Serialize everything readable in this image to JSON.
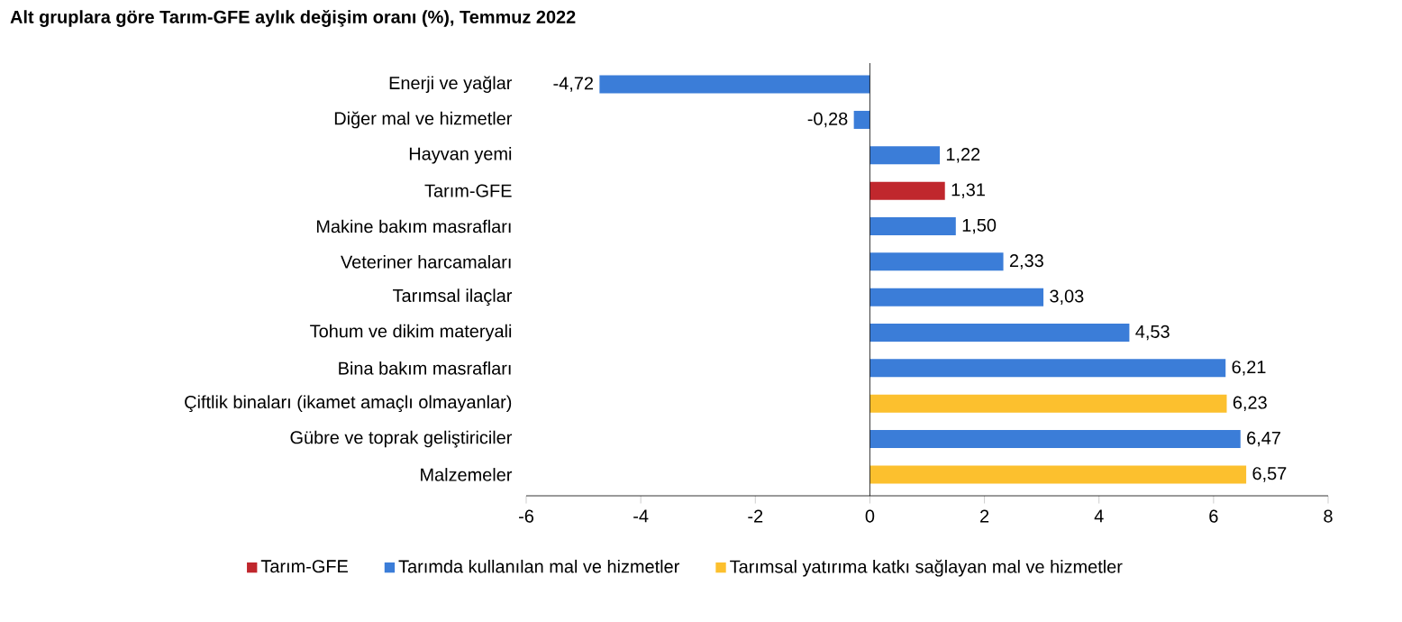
{
  "chart_data": {
    "type": "bar",
    "orientation": "horizontal",
    "title": "Alt gruplara göre Tarım-GFE aylık değişim oranı (%), Temmuz 2022",
    "categories": [
      "Enerji ve yağlar",
      "Diğer mal ve hizmetler",
      "Hayvan yemi",
      "Tarım-GFE",
      "Makine bakım masrafları",
      "Veteriner harcamaları",
      "Tarımsal ilaçlar",
      "Tohum ve dikim materyali",
      "Bina bakım masrafları",
      "Çiftlik binaları (ikamet amaçlı olmayanlar)",
      "Gübre ve toprak geliştiriciler",
      "Malzemeler"
    ],
    "series": [
      {
        "name": "Tarım-GFE",
        "color": "#c0272d",
        "values": [
          null,
          null,
          null,
          1.31,
          null,
          null,
          null,
          null,
          null,
          null,
          null,
          null
        ],
        "value_labels": [
          null,
          null,
          null,
          "1,31",
          null,
          null,
          null,
          null,
          null,
          null,
          null,
          null
        ]
      },
      {
        "name": "Tarımda kullanılan mal ve hizmetler",
        "color": "#3b7dd8",
        "values": [
          -4.72,
          -0.28,
          1.22,
          null,
          1.5,
          2.33,
          3.03,
          4.53,
          6.21,
          null,
          6.47,
          null
        ],
        "value_labels": [
          "-4,72",
          "-0,28",
          "1,22",
          null,
          "1,50",
          "2,33",
          "3,03",
          "4,53",
          "6,21",
          null,
          "6,47",
          null
        ]
      },
      {
        "name": "Tarımsal yatırıma katkı sağlayan mal ve hizmetler",
        "color": "#fcc02e",
        "values": [
          null,
          null,
          null,
          null,
          null,
          null,
          null,
          null,
          null,
          6.23,
          null,
          6.57
        ],
        "value_labels": [
          null,
          null,
          null,
          null,
          null,
          null,
          null,
          null,
          null,
          "6,23",
          null,
          "6,57"
        ]
      }
    ],
    "xlim": [
      -6,
      8
    ],
    "xticks": [
      -6,
      -4,
      -2,
      0,
      2,
      4,
      6,
      8
    ],
    "legend": "bottom"
  }
}
